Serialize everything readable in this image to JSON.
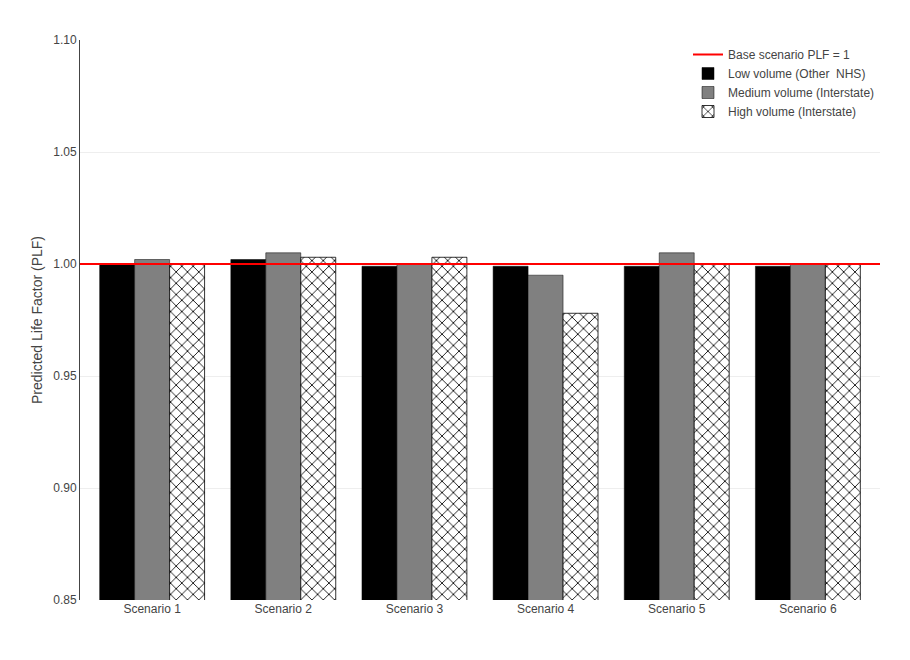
{
  "chart_data": {
    "type": "bar",
    "categories": [
      "Scenario 1",
      "Scenario 2",
      "Scenario 3",
      "Scenario 4",
      "Scenario 5",
      "Scenario 6"
    ],
    "series": [
      {
        "name": "Low volume (Other  NHS)",
        "color": "#000000",
        "values": [
          1.0,
          1.002,
          0.999,
          0.999,
          0.999,
          0.999
        ]
      },
      {
        "name": "Medium volume (Interstate)",
        "color": "#808080",
        "values": [
          1.002,
          1.005,
          1.0,
          0.995,
          1.005,
          1.0
        ]
      },
      {
        "name": "High volume (Interstate)",
        "color": "#ffffff",
        "marker": "x",
        "values": [
          1.0,
          1.003,
          1.003,
          0.978,
          1.0,
          1.0
        ]
      }
    ],
    "baseline": {
      "value": 1.0,
      "label": "Base scenario PLF = 1",
      "color": "#ff0000"
    },
    "ylabel": "Predicted Life Factor (PLF)",
    "ylim": [
      0.85,
      1.1
    ],
    "yticks": [
      0.85,
      {
        "value": 0.9,
        "label": "0.90"
      },
      0.95,
      {
        "value": 1.0,
        "label": "1.00"
      },
      1.05,
      {
        "value": 1.1,
        "label": "1.10"
      }
    ],
    "grid": true,
    "legend": "upper right"
  }
}
